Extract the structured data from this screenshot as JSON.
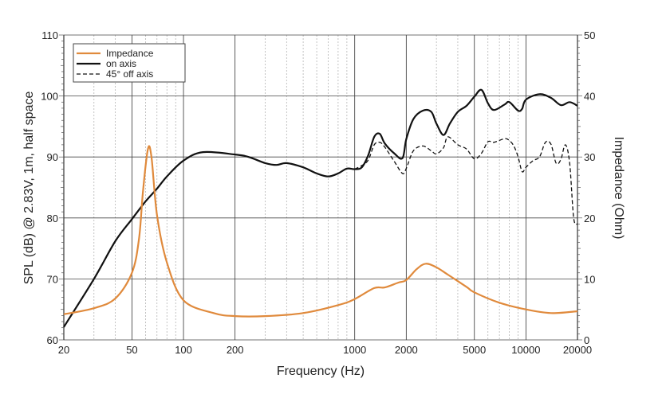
{
  "chart_data": {
    "type": "line",
    "xlabel": "Frequency (Hz)",
    "ylabel": "SPL (dB) @ 2.83V, 1m, half space",
    "ylabel_right": "Impedance (Ohm)",
    "xscale": "log",
    "xlim": [
      20,
      20000
    ],
    "ylim": [
      60,
      110
    ],
    "ylim_right": [
      0,
      50
    ],
    "x_ticks": [
      20,
      50,
      100,
      200,
      1000,
      2000,
      5000,
      10000,
      20000
    ],
    "x_tick_labels": [
      "20",
      "50",
      "100",
      "200",
      "1000",
      "2000",
      "5000",
      "10000",
      "20000"
    ],
    "y_ticks": [
      60,
      70,
      80,
      90,
      100,
      110
    ],
    "y_tick_labels": [
      "60",
      "70",
      "80",
      "90",
      "100",
      "110"
    ],
    "y_right_ticks": [
      0,
      10,
      20,
      30,
      40,
      50
    ],
    "y_right_tick_labels": [
      "0",
      "10",
      "20",
      "30",
      "40",
      "50"
    ],
    "grid": true,
    "legend_position": "top-left",
    "colors": {
      "impedance": "#e08a3c",
      "on_axis": "#111111",
      "off_axis": "#111111",
      "grid": "#555555"
    },
    "series": [
      {
        "name": "Impedance",
        "axis": "right",
        "style": "solid",
        "x": [
          20,
          30,
          40,
          50,
          55,
          58,
          62,
          65,
          70,
          80,
          100,
          150,
          200,
          300,
          500,
          800,
          1000,
          1300,
          1500,
          1800,
          2000,
          2300,
          2600,
          3000,
          3500,
          4500,
          5000,
          7000,
          10000,
          14000,
          20000
        ],
        "y": [
          4.2,
          5.2,
          6.8,
          11.0,
          16.6,
          24.4,
          31.3,
          30.0,
          20.5,
          12.7,
          6.5,
          4.4,
          3.9,
          3.9,
          4.4,
          5.7,
          6.7,
          8.5,
          8.6,
          9.4,
          9.8,
          11.6,
          12.5,
          11.9,
          10.7,
          8.7,
          7.8,
          6.1,
          5.0,
          4.4,
          4.7
        ]
      },
      {
        "name": "on axis",
        "axis": "left",
        "style": "solid",
        "x": [
          20,
          30,
          40,
          50,
          60,
          70,
          80,
          100,
          130,
          200,
          240,
          300,
          350,
          400,
          500,
          600,
          700,
          800,
          900,
          1000,
          1100,
          1200,
          1300,
          1400,
          1500,
          1700,
          1900,
          2000,
          2200,
          2500,
          2800,
          3000,
          3300,
          3600,
          4000,
          4500,
          5000,
          5500,
          6000,
          6500,
          7500,
          8000,
          9000,
          9500,
          10000,
          12000,
          14000,
          16000,
          18000,
          20000
        ],
        "y": [
          62.1,
          70.0,
          76.2,
          79.8,
          82.7,
          84.8,
          86.8,
          89.4,
          90.8,
          90.4,
          90.0,
          89.0,
          88.7,
          89.0,
          88.3,
          87.3,
          86.8,
          87.3,
          88.1,
          88.0,
          88.3,
          90.3,
          93.3,
          93.8,
          92.2,
          90.6,
          89.8,
          92.9,
          96.2,
          97.6,
          97.4,
          95.5,
          93.6,
          95.5,
          97.4,
          98.4,
          99.9,
          101.0,
          98.8,
          97.7,
          98.6,
          99.0,
          97.6,
          97.9,
          99.4,
          100.3,
          99.7,
          98.5,
          99.0,
          98.4
        ]
      },
      {
        "name": "45° off axis",
        "axis": "left",
        "style": "dashed",
        "x": [
          1000,
          1100,
          1200,
          1300,
          1400,
          1500,
          1700,
          1900,
          2000,
          2200,
          2500,
          2800,
          3000,
          3300,
          3500,
          4000,
          4500,
          5000,
          5500,
          6000,
          6500,
          7500,
          8000,
          8500,
          9000,
          9500,
          10000,
          11000,
          12000,
          13000,
          14000,
          15000,
          16000,
          17000,
          18000,
          19000,
          20000
        ],
        "y": [
          88.0,
          88.6,
          89.5,
          92.0,
          92.4,
          91.6,
          89.3,
          87.3,
          88.1,
          91.0,
          91.8,
          91.0,
          90.5,
          91.5,
          93.3,
          92.0,
          91.3,
          89.7,
          90.6,
          92.5,
          92.4,
          93.0,
          92.7,
          91.8,
          90.0,
          87.6,
          88.3,
          89.4,
          90.0,
          92.4,
          92.1,
          89.0,
          89.6,
          92.0,
          89.0,
          80.0,
          79.0
        ]
      }
    ]
  }
}
